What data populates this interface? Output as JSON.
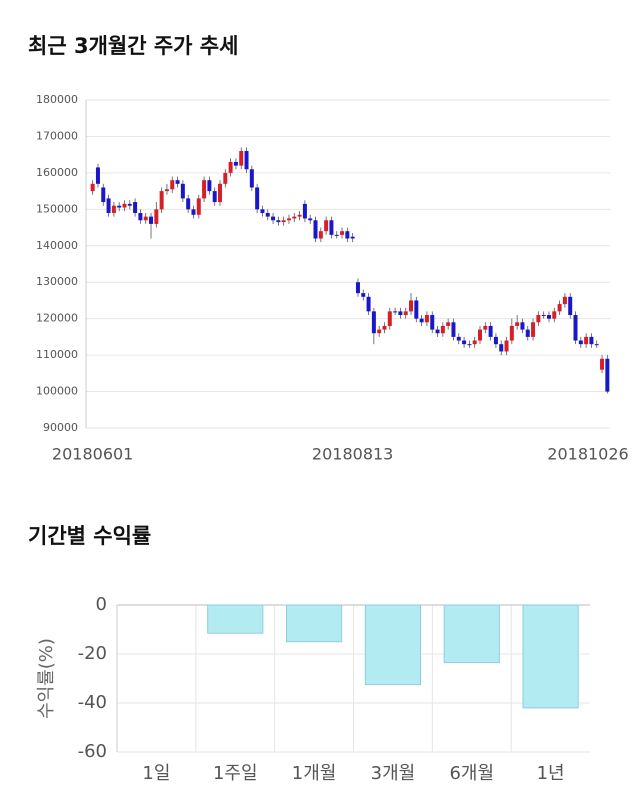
{
  "chart_data": [
    {
      "type": "candlestick",
      "title": "최근 3개월간 주가 추세",
      "categories": [
        "20180601",
        null,
        null,
        null,
        null,
        null,
        null,
        null,
        null,
        null,
        null,
        null,
        null,
        null,
        null,
        null,
        null,
        null,
        null,
        null,
        null,
        null,
        null,
        null,
        null,
        null,
        null,
        null,
        null,
        null,
        null,
        null,
        null,
        null,
        null,
        null,
        null,
        null,
        null,
        null,
        null,
        null,
        null,
        null,
        null,
        null,
        null,
        null,
        null,
        "20180813",
        null,
        null,
        null,
        null,
        null,
        null,
        null,
        null,
        null,
        null,
        null,
        null,
        null,
        null,
        null,
        null,
        null,
        null,
        null,
        null,
        null,
        null,
        null,
        null,
        null,
        null,
        null,
        null,
        null,
        null,
        null,
        null,
        null,
        null,
        null,
        null,
        null,
        null,
        null,
        null,
        null,
        null,
        null,
        null,
        null,
        null,
        null,
        "20181026"
      ],
      "open": [
        155000,
        161500,
        156000,
        153000,
        149000,
        151000,
        150500,
        151500,
        152000,
        149000,
        147000,
        148000,
        146000,
        150000,
        155000,
        155500,
        158000,
        157000,
        153000,
        150000,
        148500,
        153000,
        158000,
        155000,
        152000,
        157000,
        160000,
        163000,
        162000,
        166000,
        161000,
        156000,
        150000,
        149000,
        148000,
        147000,
        146500,
        147000,
        147500,
        148000,
        151500,
        147500,
        147000,
        142000,
        144000,
        147000,
        143000,
        143000,
        144000,
        142500,
        130000,
        127000,
        126000,
        122000,
        116000,
        117000,
        118000,
        122000,
        122000,
        121000,
        122000,
        125000,
        120000,
        119000,
        121000,
        117000,
        116000,
        118000,
        119000,
        115000,
        114000,
        113000,
        113000,
        114000,
        117000,
        118000,
        115000,
        113000,
        111000,
        114000,
        118000,
        119000,
        117000,
        115000,
        119000,
        121000,
        121000,
        120000,
        122000,
        124000,
        126000,
        121000,
        114000,
        113000,
        115000,
        113000,
        106000,
        109000
      ],
      "high": [
        158000,
        162500,
        157000,
        154000,
        152000,
        152000,
        152500,
        152500,
        153000,
        150000,
        149000,
        149000,
        152000,
        156000,
        157000,
        159000,
        159000,
        158000,
        154000,
        151000,
        154000,
        159000,
        159000,
        156000,
        158000,
        161000,
        164000,
        164000,
        167000,
        167000,
        162000,
        157000,
        151000,
        150000,
        149000,
        148000,
        148000,
        148500,
        149000,
        149500,
        152500,
        148500,
        148000,
        145000,
        148000,
        148000,
        144000,
        145000,
        145000,
        143500,
        131000,
        128000,
        127000,
        123000,
        118000,
        119000,
        123000,
        123000,
        123000,
        123000,
        127000,
        126000,
        121000,
        122000,
        122000,
        118000,
        119000,
        120000,
        120000,
        116000,
        115000,
        114000,
        115000,
        118000,
        119000,
        119000,
        116000,
        114000,
        115000,
        120000,
        121000,
        120000,
        118000,
        120000,
        122000,
        122000,
        122000,
        123000,
        125000,
        127000,
        127000,
        122000,
        115000,
        116000,
        116000,
        114000,
        110000,
        110000
      ],
      "low": [
        154000,
        156000,
        151000,
        148000,
        148000,
        149500,
        149500,
        150000,
        148000,
        146000,
        146000,
        142000,
        145000,
        149000,
        154000,
        154500,
        156000,
        152000,
        149000,
        147500,
        147500,
        152000,
        154000,
        151000,
        151000,
        156000,
        159000,
        161000,
        161000,
        160000,
        155000,
        149000,
        148000,
        147000,
        146000,
        145500,
        145500,
        146000,
        146500,
        147000,
        146500,
        146000,
        141000,
        141000,
        143000,
        142000,
        142000,
        142000,
        141000,
        141000,
        126000,
        125000,
        121000,
        113000,
        115000,
        116000,
        117000,
        121000,
        120000,
        120000,
        121000,
        119000,
        118000,
        118000,
        116000,
        115000,
        115000,
        117000,
        114000,
        113000,
        112000,
        112000,
        112000,
        113000,
        116000,
        114000,
        112000,
        110000,
        110000,
        113000,
        117000,
        116000,
        114000,
        114000,
        118000,
        120000,
        119000,
        119000,
        121000,
        123000,
        120000,
        113000,
        112000,
        112000,
        112000,
        112000,
        105000,
        99500
      ],
      "close": [
        157000,
        157000,
        152000,
        149000,
        151000,
        150500,
        151500,
        151000,
        149000,
        147000,
        148000,
        146000,
        150000,
        155000,
        155500,
        158000,
        157000,
        153000,
        150000,
        148500,
        153000,
        158000,
        155000,
        152000,
        157000,
        160000,
        163000,
        162000,
        166000,
        161000,
        156000,
        150000,
        149000,
        148000,
        147000,
        146500,
        147000,
        147500,
        148000,
        148500,
        147500,
        147000,
        142000,
        144000,
        147000,
        143000,
        143000,
        144000,
        142000,
        142000,
        127000,
        126000,
        122000,
        116000,
        117000,
        118000,
        122000,
        122000,
        121000,
        122000,
        125000,
        120000,
        119000,
        121000,
        117000,
        116000,
        118000,
        119000,
        115000,
        114000,
        113000,
        113000,
        114000,
        117000,
        118000,
        115000,
        113000,
        111000,
        114000,
        118000,
        119000,
        117000,
        115000,
        119000,
        121000,
        121000,
        120000,
        122000,
        124000,
        126000,
        121000,
        114000,
        113000,
        115000,
        113000,
        113000,
        109000,
        100000
      ],
      "up_color": "#d71f27",
      "down_color": "#1a17c9",
      "ylim": [
        90000,
        180000
      ],
      "yticks": [
        90000,
        100000,
        110000,
        120000,
        130000,
        140000,
        150000,
        160000,
        170000,
        180000
      ],
      "grid": true
    },
    {
      "type": "bar",
      "title": "기간별 수익률",
      "ylabel": "수익률(%)",
      "categories": [
        "1일",
        "1주일",
        "1개월",
        "3개월",
        "6개월",
        "1년"
      ],
      "values": [
        0,
        -11.5,
        -15,
        -32.5,
        -23.5,
        -42
      ],
      "color": "#b2ebf2",
      "edge_color": "#8fcfd9",
      "ylim": [
        -60,
        0
      ],
      "yticks": [
        0,
        -20,
        -40,
        -60
      ],
      "grid": true
    }
  ]
}
